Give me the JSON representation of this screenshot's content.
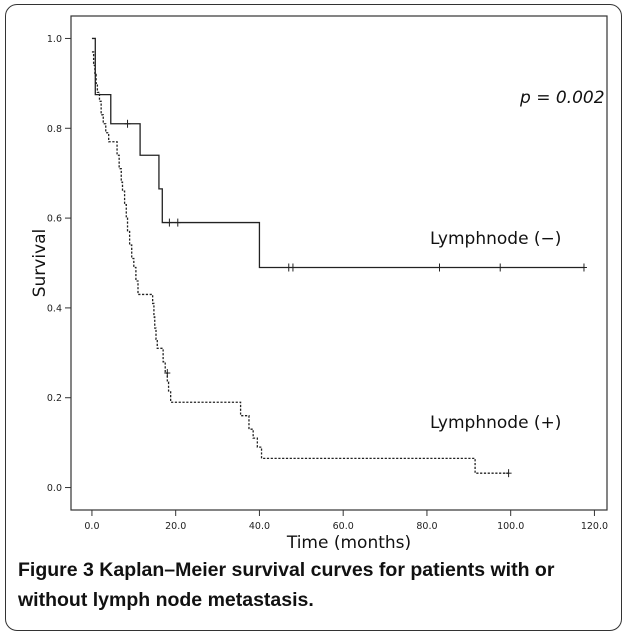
{
  "caption": {
    "label": "Figure 3",
    "text": " Kaplan–Meier survival curves for patients with or without lymph node metastasis."
  },
  "chart_data": {
    "type": "line",
    "title": "",
    "xlabel": "Time (months)",
    "ylabel": "Survival",
    "xlim": [
      -5,
      123
    ],
    "ylim": [
      -0.05,
      1.05
    ],
    "xticks": [
      0,
      20,
      40,
      60,
      80,
      100,
      120
    ],
    "xtick_labels": [
      "0.0",
      "20.0",
      "40.0",
      "60.0",
      "80.0",
      "100.0",
      "120.0"
    ],
    "yticks": [
      0,
      0.2,
      0.4,
      0.6,
      0.8,
      1.0
    ],
    "ytick_labels": [
      "0.0",
      "0.2",
      "0.4",
      "0.6",
      "0.8",
      "1.0"
    ],
    "annotation": "p = 0.002",
    "series": [
      {
        "name": "Lymphnode (−)",
        "style": "solid",
        "steps": [
          [
            0,
            1.0
          ],
          [
            0.8,
            0.875
          ],
          [
            4.5,
            0.81
          ],
          [
            11.5,
            0.74
          ],
          [
            16.0,
            0.665
          ],
          [
            16.8,
            0.59
          ],
          [
            40.0,
            0.49
          ],
          [
            117.5,
            0.49
          ]
        ],
        "censored": [
          [
            8.5,
            0.81
          ],
          [
            18.5,
            0.59
          ],
          [
            20.5,
            0.59
          ],
          [
            47.0,
            0.49
          ],
          [
            48.0,
            0.49
          ],
          [
            83.0,
            0.49
          ],
          [
            97.5,
            0.49
          ],
          [
            117.5,
            0.49
          ]
        ]
      },
      {
        "name": "Lymphnode (+)",
        "style": "dashed",
        "steps": [
          [
            0,
            0.97
          ],
          [
            0.4,
            0.94
          ],
          [
            0.7,
            0.92
          ],
          [
            1.0,
            0.9
          ],
          [
            1.3,
            0.88
          ],
          [
            1.8,
            0.86
          ],
          [
            2.2,
            0.83
          ],
          [
            2.7,
            0.81
          ],
          [
            3.3,
            0.79
          ],
          [
            4.0,
            0.77
          ],
          [
            6.0,
            0.74
          ],
          [
            6.5,
            0.71
          ],
          [
            7.0,
            0.68
          ],
          [
            7.3,
            0.66
          ],
          [
            7.8,
            0.63
          ],
          [
            8.2,
            0.6
          ],
          [
            8.5,
            0.57
          ],
          [
            9.0,
            0.54
          ],
          [
            9.5,
            0.51
          ],
          [
            10.0,
            0.49
          ],
          [
            10.5,
            0.46
          ],
          [
            11.0,
            0.43
          ],
          [
            14.5,
            0.41
          ],
          [
            14.8,
            0.38
          ],
          [
            15.0,
            0.355
          ],
          [
            15.3,
            0.33
          ],
          [
            15.6,
            0.31
          ],
          [
            17.0,
            0.28
          ],
          [
            17.5,
            0.255
          ],
          [
            18.0,
            0.235
          ],
          [
            18.3,
            0.215
          ],
          [
            18.8,
            0.19
          ],
          [
            35.5,
            0.16
          ],
          [
            37.5,
            0.13
          ],
          [
            38.5,
            0.11
          ],
          [
            39.5,
            0.09
          ],
          [
            40.5,
            0.065
          ],
          [
            91.5,
            0.032
          ],
          [
            99.5,
            0.032
          ]
        ],
        "censored": [
          [
            18.0,
            0.255
          ],
          [
            99.5,
            0.032
          ]
        ]
      }
    ],
    "legend_labels": [
      {
        "text": "Lymphnode (−)",
        "series": 0
      },
      {
        "text": "Lymphnode (+)",
        "series": 1
      }
    ]
  }
}
